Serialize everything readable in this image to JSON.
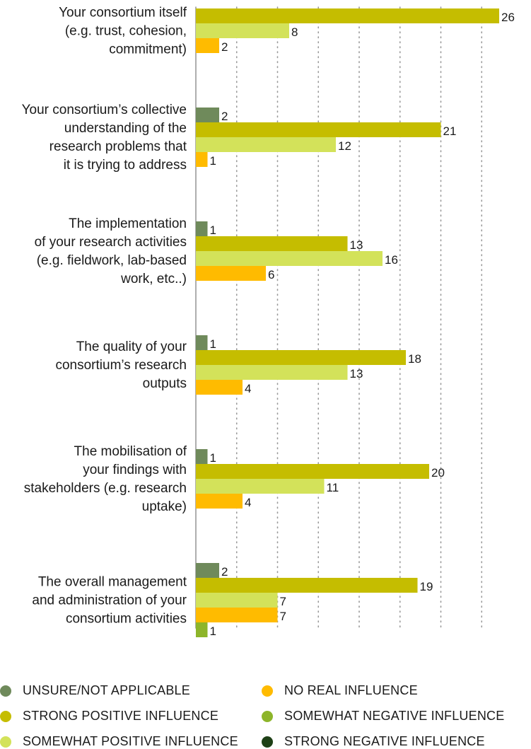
{
  "chart_data": {
    "type": "bar",
    "orientation": "horizontal",
    "xlim": [
      0,
      26
    ],
    "grid": true,
    "legend_position": "bottom",
    "categories": [
      [
        "Your consortium itself",
        "(e.g. trust, cohesion,",
        "commitment)"
      ],
      [
        "Your consortium’s collective",
        "understanding of the",
        "research problems that",
        "it is trying to address"
      ],
      [
        "The implementation",
        "of your research activities",
        "(e.g. fieldwork, lab-based",
        "work, etc..)"
      ],
      [
        "The quality of your",
        "consortium’s research",
        "outputs"
      ],
      [
        "The mobilisation of",
        "your findings with",
        "stakeholders (e.g. research",
        "uptake)"
      ],
      [
        "The overall management",
        "and administration of your",
        "consortium activities"
      ]
    ],
    "series": [
      {
        "name": "UNSURE/NOT APPLICABLE",
        "color": "#6f8a5b",
        "values": [
          null,
          2,
          1,
          1,
          1,
          2
        ]
      },
      {
        "name": "STRONG POSITIVE INFLUENCE",
        "color": "#c5bd00",
        "values": [
          26,
          21,
          13,
          18,
          20,
          19
        ]
      },
      {
        "name": "SOMEWHAT POSITIVE INFLUENCE",
        "color": "#d3e25a",
        "values": [
          8,
          12,
          16,
          13,
          11,
          7
        ]
      },
      {
        "name": "NO REAL INFLUENCE",
        "color": "#ffbb00",
        "values": [
          2,
          1,
          6,
          4,
          4,
          7
        ]
      },
      {
        "name": "SOMEWHAT NEGATIVE INFLUENCE",
        "color": "#8db52a",
        "values": [
          null,
          null,
          null,
          null,
          null,
          1
        ]
      },
      {
        "name": "STRONG NEGATIVE INFLUENCE",
        "color": "#1e4016",
        "values": [
          null,
          null,
          null,
          null,
          null,
          null
        ]
      }
    ]
  },
  "legend": {
    "items": [
      {
        "label": "UNSURE/NOT APPLICABLE",
        "color": "#6f8a5b"
      },
      {
        "label": "STRONG POSITIVE INFLUENCE",
        "color": "#c5bd00"
      },
      {
        "label": "SOMEWHAT POSITIVE INFLUENCE",
        "color": "#d3e25a"
      },
      {
        "label": "NO REAL INFLUENCE",
        "color": "#ffbb00"
      },
      {
        "label": "SOMEWHAT NEGATIVE INFLUENCE",
        "color": "#8db52a"
      },
      {
        "label": "STRONG NEGATIVE INFLUENCE",
        "color": "#1e4016"
      }
    ]
  }
}
